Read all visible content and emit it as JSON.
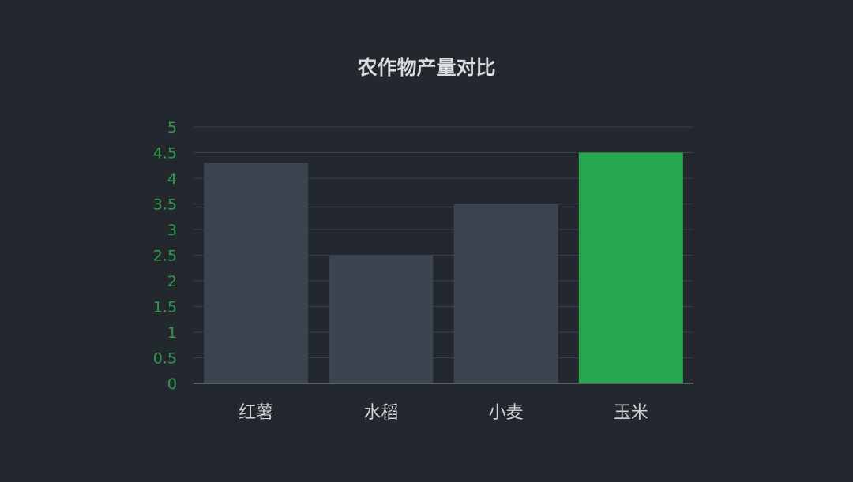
{
  "colors": {
    "background": "#23272e",
    "bar_default": "#3b454f",
    "bar_highlight": "#27a84f",
    "tick_label": "#2f9a4f",
    "gridline": "#3a4048",
    "axis": "#8a9099",
    "title": "#d9dcdf",
    "category_label": "#d0d3d7"
  },
  "chart_data": {
    "type": "bar",
    "title": "农作物产量对比",
    "xlabel": "",
    "ylabel": "",
    "categories": [
      "红薯",
      "水稻",
      "小麦",
      "玉米"
    ],
    "values": [
      4.3,
      2.5,
      3.5,
      4.5
    ],
    "highlight_index": 3,
    "ylim": [
      0,
      5
    ],
    "yticks": [
      "0",
      "0.5",
      "1",
      "1.5",
      "2",
      "2.5",
      "3",
      "3.5",
      "4",
      "4.5",
      "5"
    ],
    "grid": true,
    "legend": "none"
  }
}
